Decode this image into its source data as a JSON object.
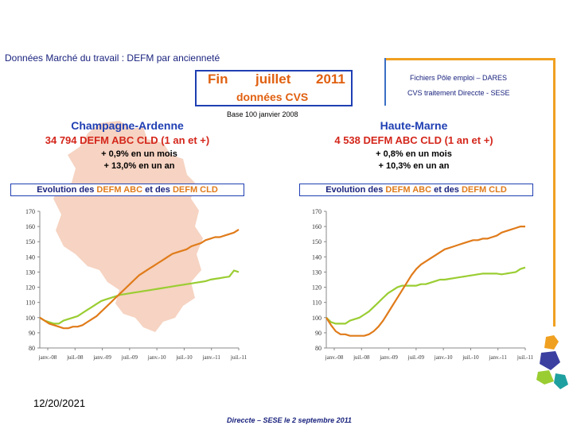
{
  "slide": {
    "title": "Données Marché du travail : DEFM par ancienneté",
    "period": {
      "word1": "Fin",
      "word2": "juillet",
      "year": "2011",
      "data_type": "données CVS"
    },
    "source_line1": "Fichiers Pôle emploi – DARES",
    "source_line2": "CVS traitement Direccte - SESE",
    "base_note": "Base 100 janvier 2008",
    "date": "12/20/2021",
    "credit": "Direccte – SESE le 2 septembre 2011"
  },
  "regions": [
    {
      "name": "Champagne-Ardenne",
      "headline": "34 794  DEFM ABC CLD (1 an et +)",
      "monthly": "+ 0,9% en un mois",
      "yearly": "+ 13,0% en un an",
      "box_parts": [
        "Evolution des ",
        "DEFM ABC",
        " et des ",
        "DEFM CLD"
      ]
    },
    {
      "name": "Haute-Marne",
      "headline": "4 538  DEFM ABC CLD (1 an et +)",
      "monthly": "+ 0,8% en un mois",
      "yearly": "+ 10,3% en un an",
      "box_parts": [
        "Evolution des ",
        "DEFM ABC",
        " et des ",
        "DEFM CLD"
      ]
    }
  ],
  "colors": {
    "abc": "#9acd32",
    "cld": "#e07b1a",
    "accent_blue": "#1f3fb3",
    "accent_orange": "#f0a020",
    "headline_red": "#d4261b",
    "map": "#f6d3c2"
  },
  "chart_data": [
    {
      "type": "line",
      "title": "Evolution des DEFM ABC et des DEFM CLD",
      "region": "Champagne-Ardenne",
      "ylim": [
        80,
        170
      ],
      "yticks": [
        80,
        90,
        100,
        110,
        120,
        130,
        140,
        150,
        160,
        170
      ],
      "x_tick_labels": [
        "janv.-08",
        "juil.-08",
        "janv.-09",
        "juil.-09",
        "janv.-10",
        "juil.-10",
        "janv.-11",
        "juil.-11"
      ],
      "n_points": 43,
      "series": [
        {
          "name": "DEFM ABC",
          "color": "#9acd32",
          "values": [
            100,
            98,
            97,
            96,
            96,
            98,
            99,
            100,
            101,
            103,
            105,
            107,
            109,
            111,
            112,
            113,
            114,
            115,
            115.5,
            116,
            116.5,
            117,
            117.5,
            118,
            118.5,
            119,
            119.5,
            120,
            120.5,
            121,
            121.5,
            122,
            122.5,
            123,
            123.5,
            124,
            125,
            125.5,
            126,
            126.5,
            127,
            131,
            130
          ]
        },
        {
          "name": "DEFM CLD",
          "color": "#e07b1a",
          "values": [
            100,
            98,
            96,
            95,
            94,
            93,
            93,
            94,
            94,
            95,
            97,
            99,
            101,
            104,
            107,
            110,
            113,
            116,
            119,
            122,
            125,
            128,
            130,
            132,
            134,
            136,
            138,
            140,
            142,
            143,
            144,
            145,
            147,
            148,
            149,
            151,
            152,
            153,
            153,
            154,
            155,
            156,
            158
          ]
        }
      ]
    },
    {
      "type": "line",
      "title": "Evolution des DEFM ABC et des DEFM CLD",
      "region": "Haute-Marne",
      "ylim": [
        80,
        170
      ],
      "yticks": [
        80,
        90,
        100,
        110,
        120,
        130,
        140,
        150,
        160,
        170
      ],
      "x_tick_labels": [
        "janv.-08",
        "juil.-08",
        "janv.-09",
        "juil.-09",
        "janv.-10",
        "juil.-10",
        "janv.-11",
        "juil.-11"
      ],
      "n_points": 43,
      "series": [
        {
          "name": "DEFM ABC",
          "color": "#9acd32",
          "values": [
            100,
            97,
            96,
            96,
            96,
            98,
            99,
            100,
            102,
            104,
            107,
            110,
            113,
            116,
            118,
            120,
            121,
            121,
            121,
            121,
            122,
            122,
            123,
            124,
            125,
            125,
            125.5,
            126,
            126.5,
            127,
            127.5,
            128,
            128.5,
            129,
            129,
            129,
            129,
            128.5,
            129,
            129.5,
            130,
            132,
            133
          ]
        },
        {
          "name": "DEFM CLD",
          "color": "#e07b1a",
          "values": [
            100,
            95,
            91,
            89,
            89,
            88,
            88,
            88,
            88,
            89,
            91,
            94,
            98,
            103,
            108,
            113,
            118,
            123,
            128,
            132,
            135,
            137,
            139,
            141,
            143,
            145,
            146,
            147,
            148,
            149,
            150,
            151,
            151,
            152,
            152,
            153,
            154,
            156,
            157,
            158,
            159,
            160,
            160
          ]
        }
      ]
    }
  ]
}
